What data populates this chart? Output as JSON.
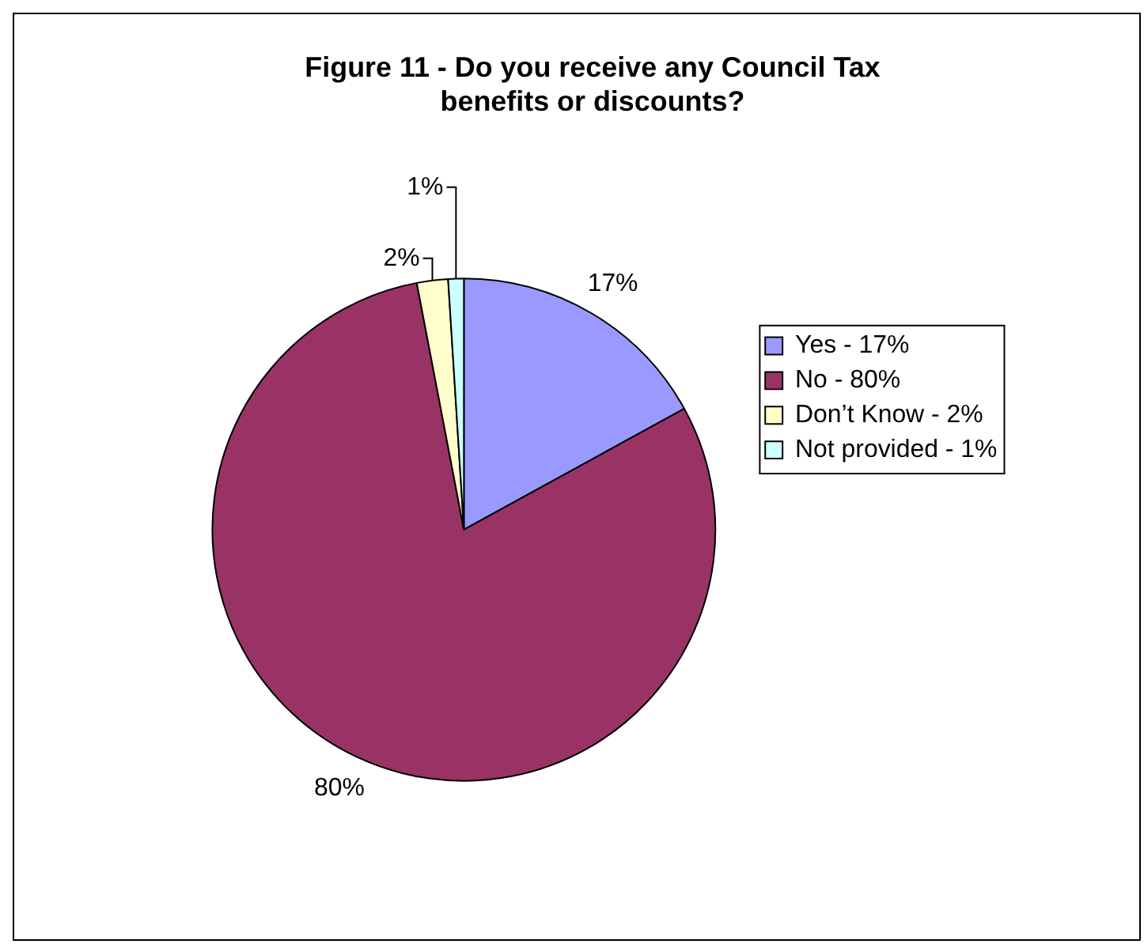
{
  "chart_data": {
    "type": "pie",
    "title": "Figure 11 - Do you receive any Council Tax benefits or discounts?",
    "categories": [
      "Yes - 17%",
      "No - 80%",
      "Don’t Know - 2%",
      "Not provided - 1%"
    ],
    "values": [
      17,
      80,
      2,
      1
    ],
    "colors": [
      "#9999ff",
      "#993366",
      "#ffffcc",
      "#ccffff"
    ],
    "value_labels": [
      "17%",
      "80%",
      "2%",
      "1%"
    ],
    "legend": "right"
  }
}
